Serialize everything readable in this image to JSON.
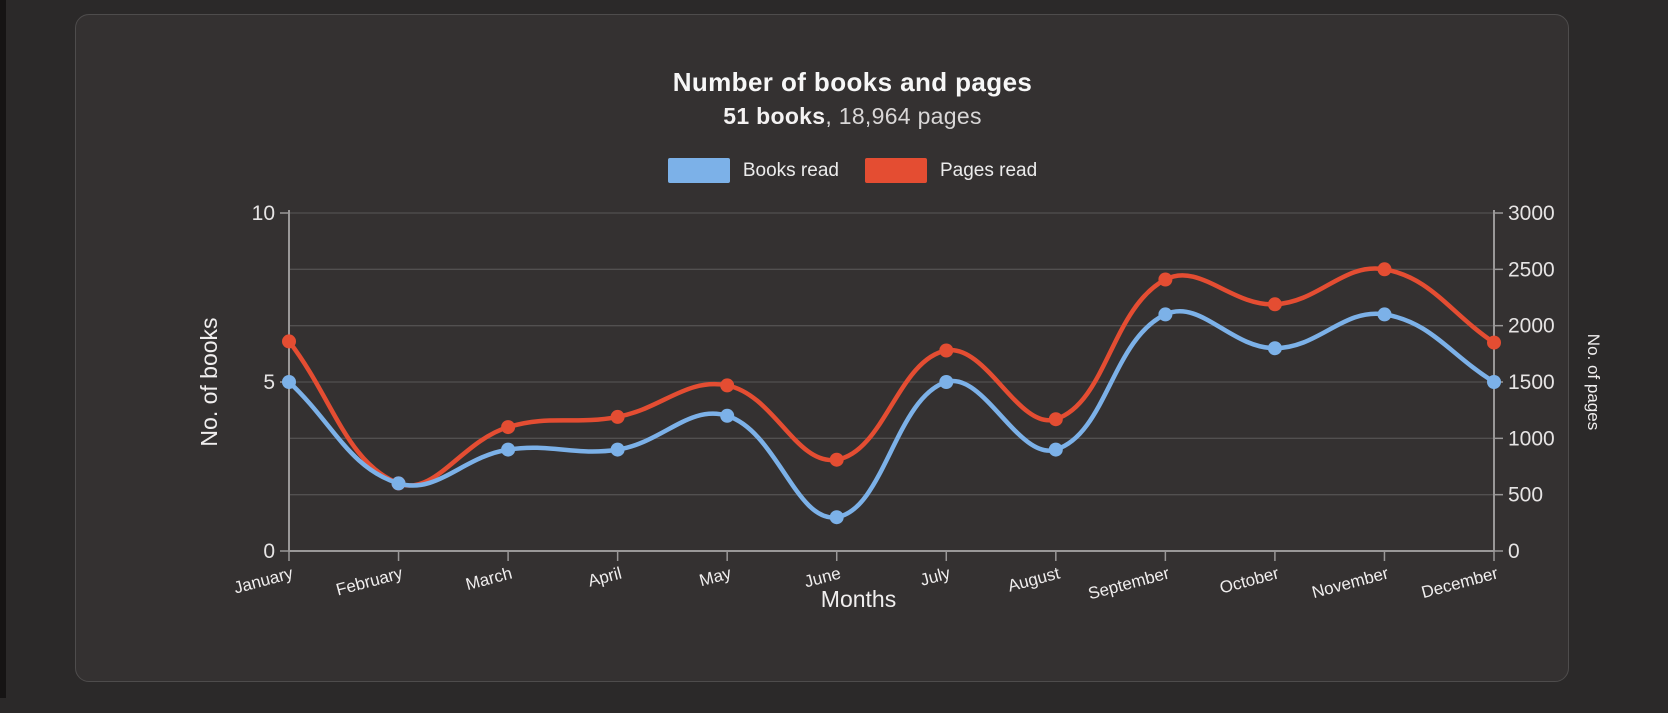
{
  "page": {
    "background": "#2b2929",
    "card_background": "#343131",
    "card_border": "#4e4c4c"
  },
  "header": {
    "title": "Number of books and pages",
    "subtitle_bold": "51 books",
    "subtitle_rest": ", 18,964 pages"
  },
  "legend": {
    "items": [
      {
        "label": "Books read",
        "color": "#7cb1e8"
      },
      {
        "label": "Pages read",
        "color": "#e44d32"
      }
    ]
  },
  "chart_data": {
    "type": "line",
    "title": "Number of books and pages",
    "subtitle": "51 books, 18,964 pages",
    "categories": [
      "January",
      "February",
      "March",
      "April",
      "May",
      "June",
      "July",
      "August",
      "September",
      "October",
      "November",
      "December"
    ],
    "series": [
      {
        "name": "Books read",
        "color": "#7cb1e8",
        "y_axis": "left",
        "values": [
          5,
          2,
          3,
          3,
          4,
          1,
          5,
          3,
          7,
          6,
          7,
          5
        ]
      },
      {
        "name": "Pages read",
        "color": "#e44d32",
        "y_axis": "right",
        "values": [
          1860,
          600,
          1100,
          1190,
          1470,
          810,
          1780,
          1170,
          2410,
          2190,
          2500,
          1850
        ]
      }
    ],
    "xlabel": "Months",
    "y_left": {
      "label": "No. of books",
      "min": 0,
      "max": 10,
      "ticks": [
        0,
        5,
        10
      ]
    },
    "y_right": {
      "label": "No. of pages",
      "min": 0,
      "max": 3000,
      "ticks": [
        0,
        500,
        1000,
        1500,
        2000,
        2500,
        3000
      ]
    },
    "grid": true,
    "legend_position": "top",
    "curve": "smooth",
    "colors": {
      "grid_line": "#525050",
      "axis_line": "#9a9898",
      "tick_text": "#e6e4e4",
      "label_text": "#f0eeee"
    }
  }
}
